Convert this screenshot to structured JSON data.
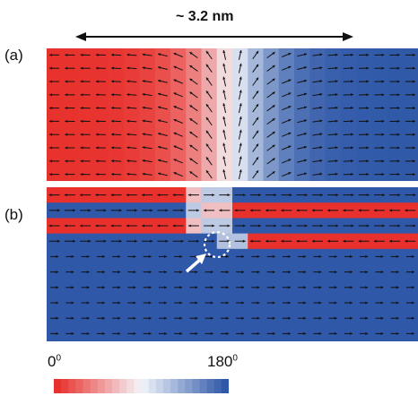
{
  "figure": {
    "scale_label": "~ 3.2 nm",
    "panel_a_label": "(a)",
    "panel_b_label": "(b)",
    "colorbar_min_label": "0",
    "colorbar_max_label": "180",
    "degree_mark": "0"
  },
  "colors": {
    "red": "#e8312c",
    "blue": "#2f58a8",
    "white": "#f3f6fb",
    "arrow": "#111111"
  },
  "annotations": {
    "pointer_arrow": "white-arrow-icon",
    "highlight_circle": "dashed-circle-icon"
  }
}
